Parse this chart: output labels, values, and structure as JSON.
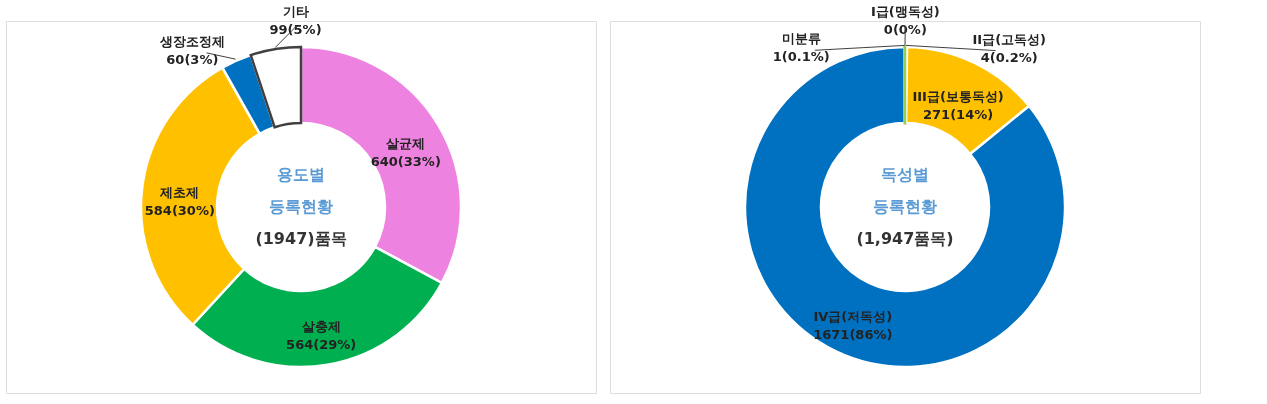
{
  "chart_data": [
    {
      "type": "donut",
      "categories": [
        "살균제",
        "살충제",
        "제초제",
        "생장조정제",
        "기타"
      ],
      "values": [
        640,
        564,
        584,
        60,
        99
      ],
      "colors": [
        "#ee82e0",
        "#00b050",
        "#ffc000",
        "#0070c0",
        "#ffffff"
      ],
      "value_labels": [
        "640(33%)",
        "564(29%)",
        "584(30%)",
        "60(3%)",
        "99(5%)"
      ],
      "annotations": [
        "용도별",
        "등록현황",
        "(1947)품목"
      ],
      "legend": false
    },
    {
      "type": "donut",
      "categories": [
        "I급(맹독성)",
        "II급(고독성)",
        "III급(보통독성)",
        "IV급(저독성)",
        "미분류"
      ],
      "values": [
        0,
        4,
        271,
        1671,
        1
      ],
      "colors": [
        "#7f7f7f",
        "#ff0000",
        "#ffc000",
        "#0070c0",
        "#92d050"
      ],
      "value_labels": [
        "0(0%)",
        "4(0.2%)",
        "271(14%)",
        "1671(86%)",
        "1(0.1%)"
      ],
      "annotations": [
        "독성별",
        "등록현황",
        "(1,947품목)"
      ],
      "legend": false
    }
  ]
}
